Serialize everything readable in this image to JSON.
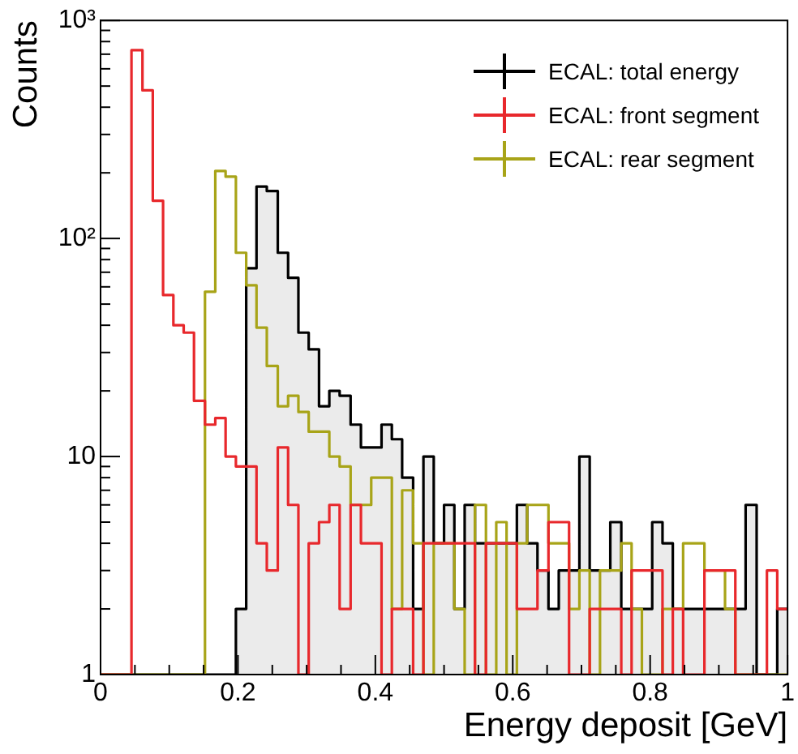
{
  "chart_data": {
    "type": "histogram",
    "xlabel": "Energy deposit [GeV]",
    "ylabel": "Counts",
    "bins": [
      0,
      0.015,
      0.03,
      0.045,
      0.061,
      0.076,
      0.091,
      0.106,
      0.121,
      0.136,
      0.152,
      0.167,
      0.182,
      0.197,
      0.212,
      0.227,
      0.242,
      0.258,
      0.273,
      0.288,
      0.303,
      0.318,
      0.333,
      0.348,
      0.364,
      0.379,
      0.394,
      0.409,
      0.424,
      0.439,
      0.455,
      0.47,
      0.485,
      0.5,
      0.515,
      0.53,
      0.545,
      0.561,
      0.576,
      0.591,
      0.606,
      0.621,
      0.636,
      0.652,
      0.667,
      0.682,
      0.697,
      0.712,
      0.727,
      0.742,
      0.758,
      0.773,
      0.788,
      0.803,
      0.818,
      0.833,
      0.848,
      0.864,
      0.879,
      0.894,
      0.909,
      0.924,
      0.939,
      0.955,
      0.97,
      0.985,
      1
    ],
    "series": [
      {
        "name": "ECAL: total energy",
        "color": "#000000",
        "values": [
          null,
          null,
          null,
          null,
          null,
          null,
          null,
          null,
          null,
          null,
          null,
          null,
          null,
          2,
          73,
          173,
          165,
          86,
          66,
          37,
          31,
          17,
          20,
          19,
          14,
          11,
          11,
          14,
          12,
          8,
          2,
          10,
          4,
          6,
          2,
          6,
          4,
          4,
          4,
          4,
          6,
          4,
          3,
          2,
          3,
          3,
          10,
          3,
          3,
          5,
          2,
          2,
          2,
          5,
          4,
          2,
          2,
          2,
          2,
          2,
          2,
          2,
          6,
          1,
          1,
          2
        ]
      },
      {
        "name": "ECAL: front segment",
        "color": "#e8282c",
        "values": [
          null,
          null,
          null,
          730,
          478,
          149,
          55,
          40,
          37,
          18,
          14,
          15,
          10,
          9,
          9,
          4,
          3,
          11,
          6,
          1,
          4,
          5,
          6,
          2,
          6,
          4,
          4,
          1,
          2,
          2,
          1,
          4,
          4,
          4,
          4,
          4,
          1,
          4,
          4,
          4,
          2,
          2,
          3,
          5,
          5,
          1,
          1,
          2,
          2,
          2,
          1,
          3,
          3,
          3,
          1,
          2,
          1,
          1,
          3,
          3,
          3,
          1,
          1,
          1,
          3,
          2
        ]
      },
      {
        "name": "ECAL: rear segment",
        "color": "#a8a418",
        "values": [
          null,
          null,
          null,
          null,
          null,
          null,
          null,
          null,
          null,
          null,
          57,
          204,
          192,
          86,
          61,
          39,
          26,
          17,
          19,
          16,
          13,
          13,
          10,
          9,
          6,
          6,
          8,
          8,
          2,
          7,
          4,
          1,
          4,
          4,
          2,
          1,
          6,
          1,
          5,
          1,
          4,
          6,
          6,
          4,
          4,
          2,
          3,
          1,
          3,
          3,
          4,
          2,
          1,
          1,
          2,
          2,
          4,
          4,
          3,
          3,
          2,
          1,
          1,
          1,
          1,
          1
        ]
      }
    ],
    "log": "y",
    "xlim": [
      0,
      1
    ],
    "ylim": [
      1,
      1000
    ],
    "xticks": [
      0,
      {
        "value": 0.05,
        "label": null
      },
      {
        "value": 0.1,
        "label": null
      },
      {
        "value": 0.15,
        "label": null
      },
      0.2,
      {
        "value": 0.25,
        "label": null
      },
      {
        "value": 0.3,
        "label": null
      },
      {
        "value": 0.35,
        "label": null
      },
      0.4,
      {
        "value": 0.45,
        "label": null
      },
      {
        "value": 0.5,
        "label": null
      },
      {
        "value": 0.55,
        "label": null
      },
      0.6,
      {
        "value": 0.65,
        "label": null
      },
      {
        "value": 0.7,
        "label": null
      },
      {
        "value": 0.75,
        "label": null
      },
      0.8,
      {
        "value": 0.85,
        "label": null
      },
      {
        "value": 0.9,
        "label": null
      },
      {
        "value": 0.95,
        "label": null
      },
      1
    ],
    "yticks": [
      1,
      {
        "value": 2,
        "label": null
      },
      {
        "value": 3,
        "label": null
      },
      {
        "value": 4,
        "label": null
      },
      {
        "value": 5,
        "label": null
      },
      {
        "value": 6,
        "label": null
      },
      {
        "value": 7,
        "label": null
      },
      {
        "value": 8,
        "label": null
      },
      {
        "value": 9,
        "label": null
      },
      10,
      {
        "value": 20,
        "label": null
      },
      {
        "value": 30,
        "label": null
      },
      {
        "value": 40,
        "label": null
      },
      {
        "value": 50,
        "label": null
      },
      {
        "value": 60,
        "label": null
      },
      {
        "value": 70,
        "label": null
      },
      {
        "value": 80,
        "label": null
      },
      {
        "value": 90,
        "label": null
      },
      {
        "value": 100,
        "label": "10²"
      },
      {
        "value": 200,
        "label": null
      },
      {
        "value": 300,
        "label": null
      },
      {
        "value": 400,
        "label": null
      },
      {
        "value": 500,
        "label": null
      },
      {
        "value": 600,
        "label": null
      },
      {
        "value": 700,
        "label": null
      },
      {
        "value": 800,
        "label": null
      },
      {
        "value": 900,
        "label": null
      },
      {
        "value": 1000,
        "label": "10³"
      }
    ],
    "grid": false,
    "legend": "top right"
  }
}
